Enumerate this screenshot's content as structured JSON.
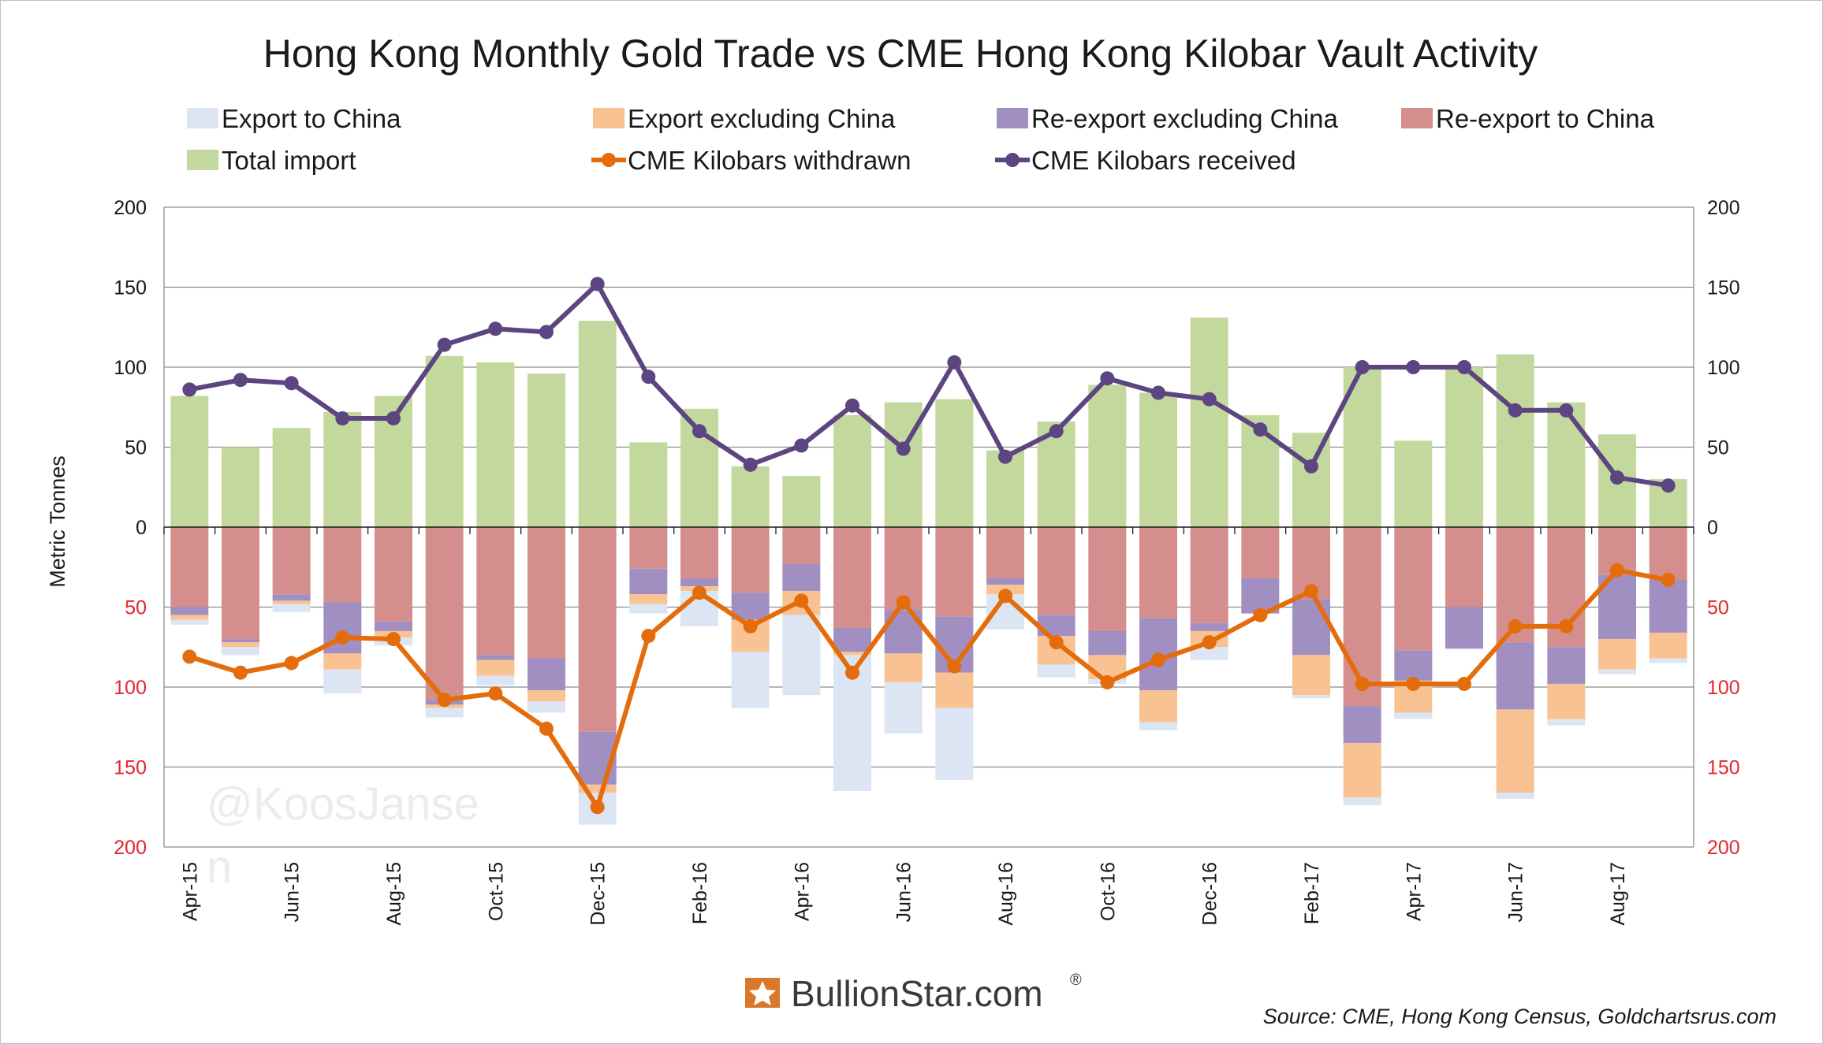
{
  "chart_data": {
    "type": "bar",
    "title": "Hong Kong Monthly Gold Trade vs CME Hong Kong Kilobar Vault Activity",
    "ylabel": "Metric Tonnes",
    "ylim": [
      -200,
      200
    ],
    "y_ticks_left": [
      "200",
      "150",
      "100",
      "50",
      "0",
      "50",
      "100",
      "150",
      "200"
    ],
    "y_ticks_right": [
      "200",
      "150",
      "100",
      "50",
      "0",
      "50",
      "100",
      "150",
      "200"
    ],
    "legend_position": "top",
    "grid": true,
    "categories": [
      "Apr-15",
      "May-15",
      "Jun-15",
      "Jul-15",
      "Aug-15",
      "Sep-15",
      "Oct-15",
      "Nov-15",
      "Dec-15",
      "Jan-16",
      "Feb-16",
      "Mar-16",
      "Apr-16",
      "May-16",
      "Jun-16",
      "Jul-16",
      "Aug-16",
      "Sep-16",
      "Oct-16",
      "Nov-16",
      "Dec-16",
      "Jan-17",
      "Feb-17",
      "Mar-17",
      "Apr-17",
      "May-17",
      "Jun-17",
      "Jul-17",
      "Aug-17",
      "Sep-17"
    ],
    "x_tick_labels": [
      "Apr-15",
      "",
      "Jun-15",
      "",
      "Aug-15",
      "",
      "Oct-15",
      "",
      "Dec-15",
      "",
      "Feb-16",
      "",
      "Apr-16",
      "",
      "Jun-16",
      "",
      "Aug-16",
      "",
      "Oct-16",
      "",
      "Dec-16",
      "",
      "Feb-17",
      "",
      "Apr-17",
      "",
      "Jun-17",
      "",
      "Aug-17",
      ""
    ],
    "series": [
      {
        "name": "Export to China",
        "kind": "bar-negative",
        "color": "#dbe5f3",
        "values": [
          3,
          5,
          5,
          15,
          5,
          6,
          6,
          7,
          20,
          6,
          22,
          35,
          50,
          85,
          32,
          45,
          22,
          8,
          3,
          5,
          8,
          0,
          2,
          5,
          4,
          0,
          4,
          4,
          3,
          3
        ]
      },
      {
        "name": "Export excluding China",
        "kind": "bar-negative",
        "color": "#f9c292",
        "values": [
          3,
          3,
          2,
          10,
          4,
          2,
          10,
          7,
          5,
          6,
          3,
          20,
          15,
          2,
          18,
          22,
          6,
          18,
          15,
          20,
          10,
          0,
          25,
          34,
          20,
          0,
          52,
          22,
          19,
          16
        ]
      },
      {
        "name": "Re-export excluding China",
        "kind": "bar-negative",
        "color": "#a18fc2",
        "values": [
          5,
          2,
          4,
          32,
          6,
          3,
          3,
          20,
          33,
          16,
          5,
          17,
          17,
          15,
          27,
          35,
          4,
          13,
          15,
          45,
          5,
          22,
          35,
          23,
          19,
          26,
          42,
          23,
          40,
          33
        ]
      },
      {
        "name": "Re-export to China",
        "kind": "bar-negative",
        "color": "#d48e8d",
        "values": [
          50,
          70,
          42,
          47,
          59,
          108,
          80,
          82,
          128,
          26,
          32,
          41,
          23,
          63,
          52,
          56,
          32,
          55,
          65,
          57,
          60,
          32,
          45,
          112,
          77,
          50,
          72,
          75,
          30,
          33
        ]
      },
      {
        "name": "Total import",
        "kind": "bar-positive",
        "color": "#c3d89c",
        "values": [
          82,
          50,
          62,
          72,
          82,
          107,
          103,
          96,
          129,
          53,
          74,
          38,
          32,
          70,
          78,
          80,
          48,
          66,
          89,
          84,
          131,
          70,
          59,
          100,
          54,
          100,
          108,
          78,
          58,
          30
        ]
      },
      {
        "name": "CME Kilobars withdrawn",
        "kind": "line-negative",
        "color": "#e46c0a",
        "values": [
          81,
          91,
          85,
          69,
          70,
          108,
          104,
          126,
          175,
          68,
          41,
          62,
          46,
          91,
          47,
          87,
          43,
          72,
          97,
          83,
          72,
          55,
          40,
          98,
          98,
          98,
          62,
          62,
          27,
          33
        ]
      },
      {
        "name": "CME Kilobars received",
        "kind": "line-positive",
        "color": "#5c4580",
        "values": [
          86,
          92,
          90,
          68,
          68,
          114,
          124,
          122,
          152,
          94,
          60,
          39,
          51,
          76,
          49,
          103,
          44,
          60,
          93,
          84,
          80,
          61,
          38,
          100,
          100,
          100,
          73,
          73,
          31,
          26
        ]
      }
    ]
  },
  "legend": [
    {
      "label": "Export to China",
      "color": "#dbe5f3",
      "icon": "swatch"
    },
    {
      "label": "Export excluding China",
      "color": "#f9c292",
      "icon": "swatch"
    },
    {
      "label": "Re-export excluding China",
      "color": "#a18fc2",
      "icon": "swatch"
    },
    {
      "label": "Re-export to China",
      "color": "#d48e8d",
      "icon": "swatch"
    },
    {
      "label": "Total import",
      "color": "#c3d89c",
      "icon": "swatch"
    },
    {
      "label": "CME Kilobars withdrawn",
      "color": "#e46c0a",
      "icon": "line-marker"
    },
    {
      "label": "CME Kilobars received",
      "color": "#5c4580",
      "icon": "line-marker"
    }
  ],
  "watermark": {
    "text": "@KoosJanse",
    "text_cut": "n"
  },
  "brand": {
    "text": "BullionStar.com",
    "reg": "®",
    "icon": "bullionstar-star-icon"
  },
  "source": "Source: CME, Hong Kong Census, Goldchartsrus.com",
  "colors": {
    "axis": "#1a1a1a",
    "grid": "#8c8c8c",
    "negative_tick": "#e3262b",
    "brand_orange": "#d9772a"
  }
}
